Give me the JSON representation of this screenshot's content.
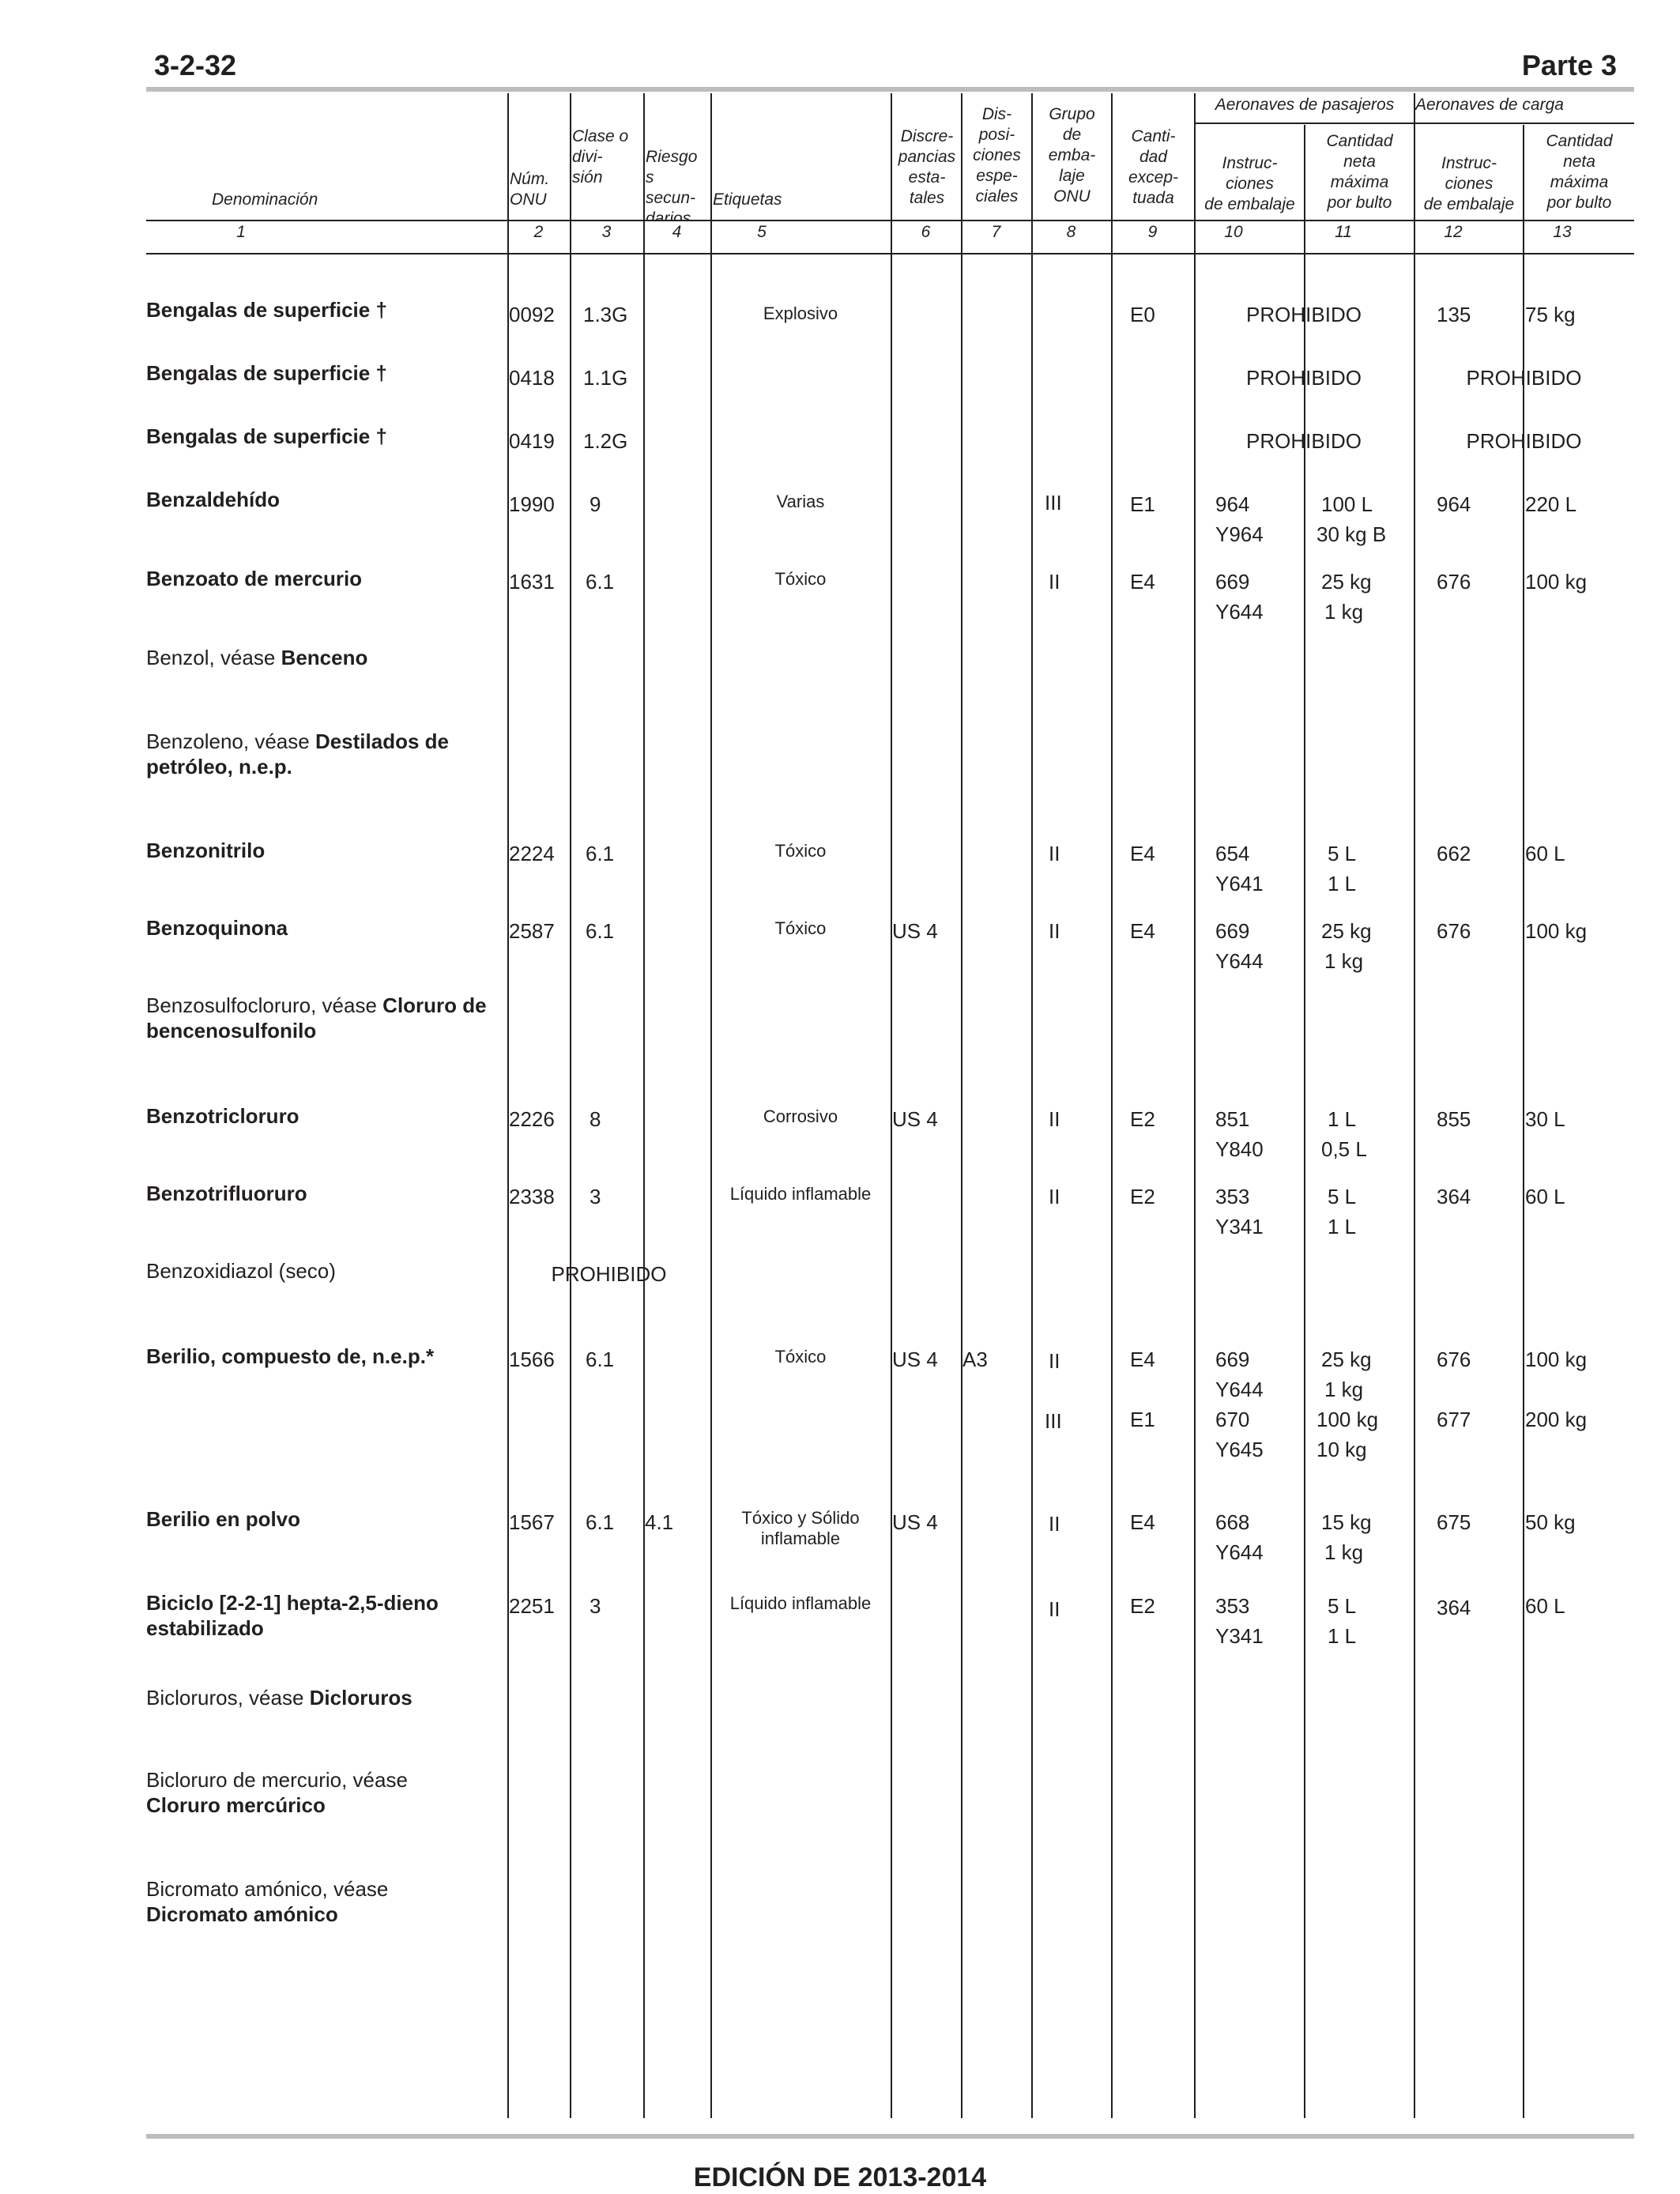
{
  "header": {
    "page_id": "3-2-32",
    "part": "Parte 3"
  },
  "footer": {
    "edition": "EDICIÓN DE 2013-2014"
  },
  "columns": {
    "denominacion": "Denominación",
    "num_onu": [
      "Núm.",
      "ONU"
    ],
    "clase": [
      "Clase o",
      "divi-",
      "sión"
    ],
    "riesgos": [
      "Riesgo",
      "s",
      "secun-",
      "darios"
    ],
    "etiquetas": "Etiquetas",
    "discrepancias": [
      "Discre-",
      "pancias",
      "esta-",
      "tales"
    ],
    "disposiciones": [
      "Dis-",
      "posi-",
      "ciones",
      "espe-",
      "ciales"
    ],
    "grupo": [
      "Grupo",
      "de",
      "emba-",
      "laje",
      "ONU"
    ],
    "cantidad_exceptuada": [
      "Canti-",
      "dad",
      "excep-",
      "tuada"
    ],
    "aeronaves_pasajeros": "Aeronaves de pasajeros",
    "aeronaves_carga": "Aeronaves de carga",
    "instrucciones": [
      "Instruc-",
      "ciones",
      "de embalaje"
    ],
    "cantidad_neta": [
      "Cantidad",
      "neta",
      "máxima",
      "por bulto"
    ],
    "numbers": [
      "1",
      "2",
      "3",
      "4",
      "5",
      "6",
      "7",
      "8",
      "9",
      "10",
      "11",
      "12",
      "13"
    ]
  },
  "rows": {
    "r1": {
      "name": "Bengalas de superficie †",
      "un": "0092",
      "cls": "1.3G",
      "label": "Explosivo",
      "eq": "E0",
      "pax": "PROHIBIDO",
      "c_ins": "135",
      "c_qty": "75 kg"
    },
    "r2": {
      "name": "Bengalas de superficie †",
      "un": "0418",
      "cls": "1.1G",
      "pax": "PROHIBIDO",
      "cargo": "PROHIBIDO"
    },
    "r3": {
      "name": "Bengalas de superficie †",
      "un": "0419",
      "cls": "1.2G",
      "pax": "PROHIBIDO",
      "cargo": "PROHIBIDO"
    },
    "r4": {
      "name": "Benzaldehído",
      "un": "1990",
      "cls": "9",
      "label": "Varias",
      "pg": "III",
      "eq": "E1",
      "p_ins": "964",
      "p_ins2": "Y964",
      "p_qty": "100 L",
      "p_qty2": "30 kg B",
      "c_ins": "964",
      "c_qty": "220 L"
    },
    "r5": {
      "name": "Benzoato de mercurio",
      "un": "1631",
      "cls": "6.1",
      "label": "Tóxico",
      "pg": "II",
      "eq": "E4",
      "p_ins": "669",
      "p_ins2": "Y644",
      "p_qty": "25 kg",
      "p_qty2": "1 kg",
      "c_ins": "676",
      "c_qty": "100 kg"
    },
    "r6": {
      "name_a": "Benzol, véase ",
      "name_b": "Benceno"
    },
    "r7": {
      "name_a": "Benzoleno, véase ",
      "name_b": "Destilados de petróleo, n.e.p."
    },
    "r8": {
      "name": "Benzonitrilo",
      "un": "2224",
      "cls": "6.1",
      "label": "Tóxico",
      "pg": "II",
      "eq": "E4",
      "p_ins": "654",
      "p_ins2": "Y641",
      "p_qty": "5 L",
      "p_qty2": "1 L",
      "c_ins": "662",
      "c_qty": "60 L"
    },
    "r9": {
      "name": "Benzoquinona",
      "un": "2587",
      "cls": "6.1",
      "label": "Tóxico",
      "state": "US 4",
      "pg": "II",
      "eq": "E4",
      "p_ins": "669",
      "p_ins2": "Y644",
      "p_qty": "25 kg",
      "p_qty2": "1 kg",
      "c_ins": "676",
      "c_qty": "100 kg"
    },
    "r10": {
      "name_a": "Benzosulfocloruro, véase ",
      "name_b": "Cloruro de bencenosulfonilo"
    },
    "r11": {
      "name": "Benzotricloruro",
      "un": "2226",
      "cls": "8",
      "label": "Corrosivo",
      "state": "US 4",
      "pg": "II",
      "eq": "E2",
      "p_ins": "851",
      "p_ins2": "Y840",
      "p_qty": "1 L",
      "p_qty2": "0,5 L",
      "c_ins": "855",
      "c_qty": "30 L"
    },
    "r12": {
      "name": "Benzotrifluoruro",
      "un": "2338",
      "cls": "3",
      "label": "Líquido inflamable",
      "pg": "II",
      "eq": "E2",
      "p_ins": "353",
      "p_ins2": "Y341",
      "p_qty": "5 L",
      "p_qty2": "1 L",
      "c_ins": "364",
      "c_qty": "60 L"
    },
    "r13": {
      "name": "Benzoxidiazol (seco)",
      "forbidden": "PROHIBIDO"
    },
    "r14": {
      "name": "Berilio, compuesto de, n.e.p.*",
      "un": "1566",
      "cls": "6.1",
      "label": "Tóxico",
      "state": "US 4",
      "special": "A3",
      "pg": "II",
      "eq": "E4",
      "p_ins": "669",
      "p_ins2": "Y644",
      "p_qty": "25 kg",
      "p_qty2": "1 kg",
      "c_ins": "676",
      "c_qty": "100 kg",
      "pg_b": "III",
      "eq_b": "E1",
      "p_ins_b": "670",
      "p_ins2_b": "Y645",
      "p_qty_b": "100 kg",
      "p_qty2_b": "10 kg",
      "c_ins_b": "677",
      "c_qty_b": "200 kg"
    },
    "r15": {
      "name": "Berilio en polvo",
      "un": "1567",
      "cls": "6.1",
      "sub": "4.1",
      "label": "Tóxico y Sólido",
      "label2": "inflamable",
      "state": "US 4",
      "pg": "II",
      "eq": "E4",
      "p_ins": "668",
      "p_ins2": "Y644",
      "p_qty": "15 kg",
      "p_qty2": "1 kg",
      "c_ins": "675",
      "c_qty": "50 kg"
    },
    "r16": {
      "name": "Biciclo [2-2-1] hepta-2,5-dieno estabilizado",
      "un": "2251",
      "cls": "3",
      "label": "Líquido inflamable",
      "pg": "II",
      "eq": "E2",
      "p_ins": "353",
      "p_ins2": "Y341",
      "p_qty": "5 L",
      "p_qty2": "1 L",
      "c_ins": "364",
      "c_qty": "60 L"
    },
    "r17": {
      "name_a": "Bicloruros, véase ",
      "name_b": "Dicloruros"
    },
    "r18": {
      "name_a": "Bicloruro de mercurio, véase ",
      "name_b": "Cloruro mercúrico"
    },
    "r19": {
      "name_a": "Bicromato amónico, véase ",
      "name_b": "Dicromato amónico"
    }
  }
}
